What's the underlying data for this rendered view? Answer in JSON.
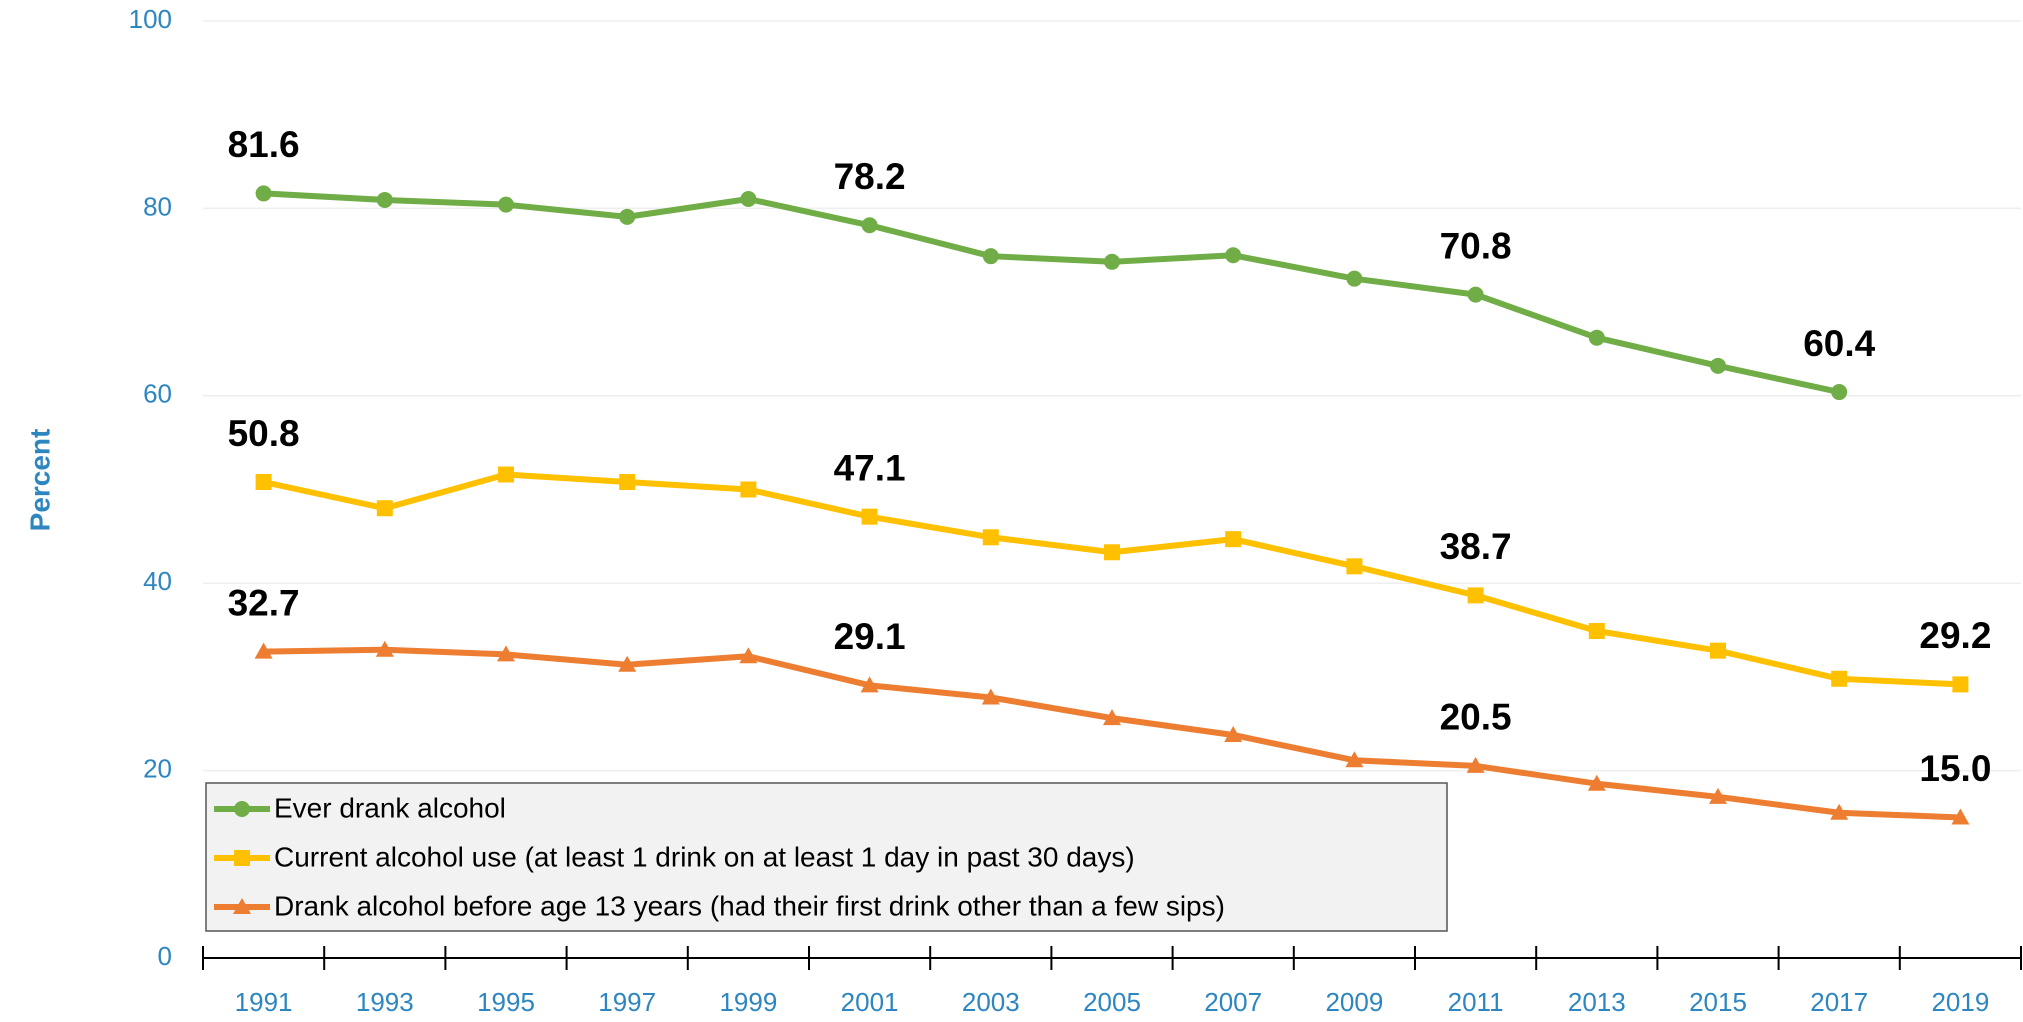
{
  "chart_data": {
    "type": "line",
    "y_label": "Percent",
    "categories": [
      "1991",
      "1993",
      "1995",
      "1997",
      "1999",
      "2001",
      "2003",
      "2005",
      "2007",
      "2009",
      "2011",
      "2013",
      "2015",
      "2017",
      "2019"
    ],
    "series": [
      {
        "name": "Ever drank alcohol",
        "color": "#70ad47",
        "marker": "circle",
        "values": [
          81.6,
          80.9,
          80.4,
          79.1,
          81.0,
          78.2,
          74.9,
          74.3,
          75.0,
          72.5,
          70.8,
          66.2,
          63.2,
          60.4,
          null
        ],
        "value_labels": [
          "81.6",
          null,
          null,
          null,
          null,
          "78.2",
          null,
          null,
          null,
          null,
          "70.8",
          null,
          null,
          "60.4",
          null
        ]
      },
      {
        "name": "Current alcohol use (at least 1 drink on at least 1 day in past 30 days)",
        "color": "#ffc000",
        "marker": "square",
        "values": [
          50.8,
          48.0,
          51.6,
          50.8,
          50.0,
          47.1,
          44.9,
          43.3,
          44.7,
          41.8,
          38.7,
          34.9,
          32.8,
          29.8,
          29.2
        ],
        "value_labels": [
          "50.8",
          null,
          null,
          null,
          null,
          "47.1",
          null,
          null,
          null,
          null,
          "38.7",
          null,
          null,
          null,
          "29.2"
        ]
      },
      {
        "name": "Drank alcohol before age 13 years (had their first drink other than a few sips)",
        "color": "#ed7d31",
        "marker": "triangle",
        "values": [
          32.7,
          32.9,
          32.4,
          31.3,
          32.2,
          29.1,
          27.8,
          25.6,
          23.8,
          21.1,
          20.5,
          18.6,
          17.2,
          15.5,
          15.0
        ],
        "value_labels": [
          "32.7",
          null,
          null,
          null,
          null,
          "29.1",
          null,
          null,
          null,
          null,
          "20.5",
          null,
          null,
          null,
          "15.0"
        ]
      }
    ],
    "ylim": [
      0,
      100
    ],
    "yticks": [
      0,
      20,
      40,
      60,
      80,
      100
    ],
    "grid": true,
    "legend_position": "lower left"
  }
}
